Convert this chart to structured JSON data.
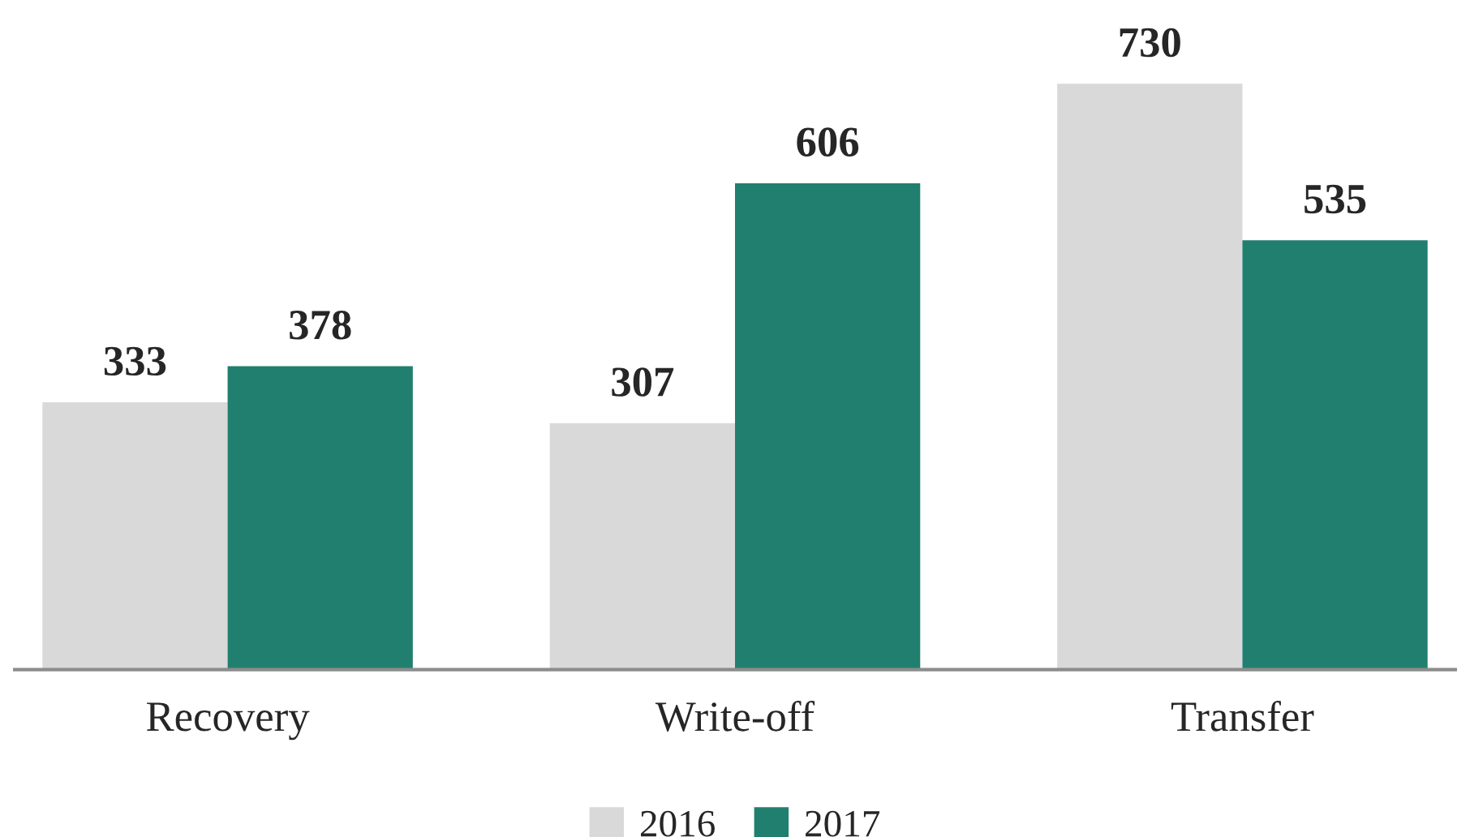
{
  "chart_data": {
    "type": "bar",
    "categories": [
      "Recovery",
      "Write-off",
      "Transfer"
    ],
    "series": [
      {
        "name": "2016",
        "color": "#d9d9d9",
        "values": [
          333,
          307,
          730
        ]
      },
      {
        "name": "2017",
        "color": "#217f6f",
        "values": [
          378,
          606,
          535
        ]
      }
    ],
    "data_labels": true,
    "legend": "bottom",
    "grid": false,
    "tick_labels": "x"
  }
}
